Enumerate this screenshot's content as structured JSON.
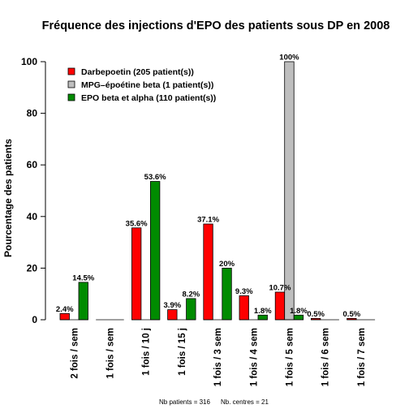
{
  "footer": {
    "patients": "Nb patients =  316",
    "centres": "Nb. centres =  21"
  },
  "chart_data": {
    "type": "bar",
    "title": "Fréquence des injections d'EPO des patients sous DP en 2008",
    "ylabel": "Pourcentage des patients",
    "xlabel": "",
    "ylim": [
      0,
      100
    ],
    "yticks": [
      0,
      20,
      40,
      60,
      80,
      100
    ],
    "grid": false,
    "legend_position": "top-left",
    "categories": [
      "2 fois / sem",
      "1 fois / sem",
      "1 fois / 10 j",
      "1 fois / 15 j",
      "1 fois / 3 sem",
      "1 fois / 4 sem",
      "1 fois / 5 sem",
      "1 fois / 6 sem",
      "1 fois / 7 sem"
    ],
    "series": [
      {
        "name": "Darbepoetin (205 patient(s))",
        "color": "#ff0000",
        "values": [
          2.4,
          0,
          35.6,
          3.9,
          37.1,
          9.3,
          10.7,
          0.5,
          0.5
        ],
        "labels": [
          "2.4%",
          "",
          "35.6%",
          "3.9%",
          "37.1%",
          "9.3%",
          "10.7%",
          "0.5%",
          "0.5%"
        ]
      },
      {
        "name": "MPG–époétine beta (1 patient(s))",
        "color": "#bebebe",
        "values": [
          0,
          0,
          0,
          0,
          0,
          0,
          100,
          0,
          0
        ],
        "labels": [
          "",
          "",
          "",
          "",
          "",
          "",
          "100%",
          "",
          ""
        ]
      },
      {
        "name": "EPO beta et alpha (110 patient(s))",
        "color": "#008b00",
        "values": [
          14.5,
          0,
          53.6,
          8.2,
          20,
          1.8,
          1.8,
          0,
          0
        ],
        "labels": [
          "14.5%",
          "",
          "53.6%",
          "8.2%",
          "20%",
          "1.8%",
          "1.8%",
          "",
          ""
        ]
      }
    ]
  }
}
